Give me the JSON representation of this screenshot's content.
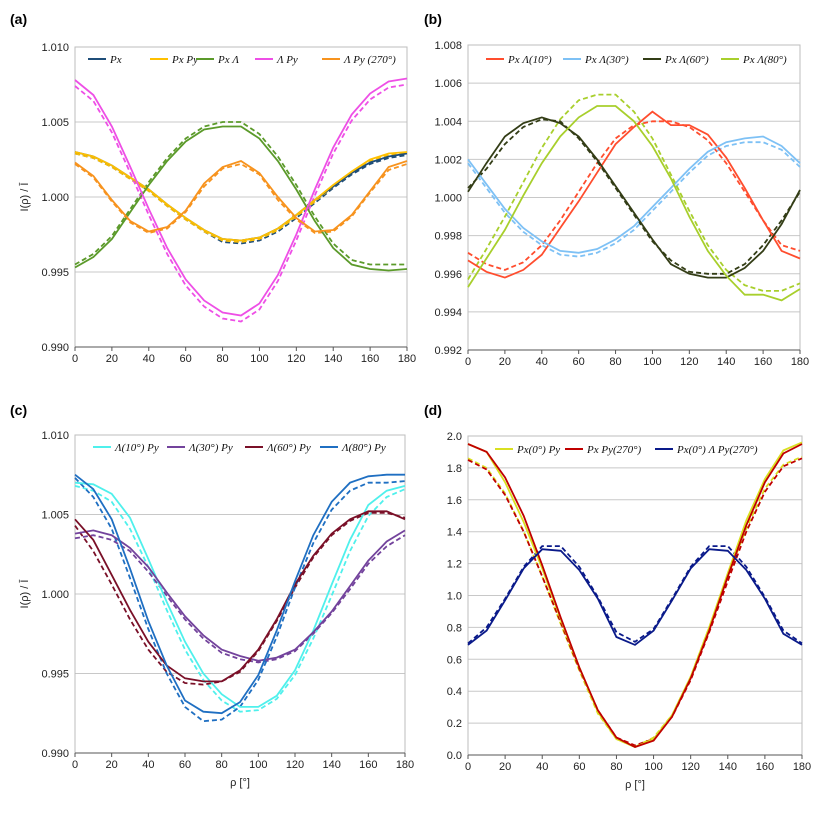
{
  "chart_data": [
    {
      "panel": "(a)",
      "type": "line",
      "x": [
        0,
        10,
        20,
        30,
        40,
        50,
        60,
        70,
        80,
        90,
        100,
        110,
        120,
        130,
        140,
        150,
        160,
        170,
        180
      ],
      "ylabel": "I(ρ) / Ī",
      "xlabel": "",
      "xlim": [
        0,
        180
      ],
      "ylim": [
        0.99,
        1.01
      ],
      "xticks": [
        "0",
        "20",
        "40",
        "60",
        "80",
        "100",
        "120",
        "140",
        "160",
        "180"
      ],
      "yticks": [
        "0.990",
        "0.995",
        "1.000",
        "1.005",
        "1.010"
      ],
      "grid": true,
      "legend_position": "top",
      "series": [
        {
          "name": "Px",
          "color": "#1f4e79",
          "solid": [
            1.003,
            1.0027,
            1.0021,
            1.0013,
            1.0005,
            0.9995,
            0.9986,
            0.9978,
            0.9972,
            0.9971,
            0.9973,
            0.9979,
            0.9988,
            0.9998,
            1.0007,
            1.0016,
            1.0023,
            1.0027,
            1.0029
          ],
          "dashed": [
            1.0029,
            1.0026,
            1.002,
            1.0012,
            1.0004,
            0.9994,
            0.9985,
            0.9977,
            0.997,
            0.9969,
            0.9971,
            0.9977,
            0.9986,
            0.9996,
            1.0006,
            1.0015,
            1.0022,
            1.0026,
            1.0028
          ]
        },
        {
          "name": "Px Py",
          "color": "#ffc000",
          "solid": [
            1.003,
            1.0027,
            1.0021,
            1.0013,
            1.0005,
            0.9995,
            0.9986,
            0.9978,
            0.9972,
            0.9971,
            0.9973,
            0.9979,
            0.9988,
            0.9998,
            1.0008,
            1.0017,
            1.0025,
            1.0029,
            1.003
          ],
          "dashed": [
            1.0029,
            1.0026,
            1.002,
            1.0012,
            1.0004,
            0.9994,
            0.9985,
            0.9977,
            0.9971,
            0.997,
            0.9972,
            0.9978,
            0.9987,
            0.9997,
            1.0007,
            1.0016,
            1.0024,
            1.0028,
            1.0029
          ]
        },
        {
          "name": "Px Λ",
          "color": "#5b9a2a",
          "solid": [
            0.9953,
            0.996,
            0.9972,
            0.999,
            1.0008,
            1.0024,
            1.0037,
            1.0045,
            1.0047,
            1.0047,
            1.0039,
            1.0024,
            1.0005,
            0.9984,
            0.9966,
            0.9955,
            0.9952,
            0.9951,
            0.9952
          ],
          "dashed": [
            0.9955,
            0.9962,
            0.9974,
            0.9992,
            1.001,
            1.0026,
            1.0039,
            1.0047,
            1.005,
            1.005,
            1.0042,
            1.0027,
            1.0008,
            0.9987,
            0.9969,
            0.9958,
            0.9955,
            0.9955,
            0.9955
          ]
        },
        {
          "name": "Λ Py",
          "color": "#ee4fe6",
          "solid": [
            1.0078,
            1.0068,
            1.0047,
            1.002,
            0.9992,
            0.9966,
            0.9945,
            0.9931,
            0.9923,
            0.9921,
            0.9929,
            0.9948,
            0.9975,
            1.0005,
            1.0033,
            1.0055,
            1.0069,
            1.0077,
            1.0079
          ],
          "dashed": [
            1.0074,
            1.0064,
            1.0043,
            1.0016,
            0.9988,
            0.9962,
            0.9941,
            0.9927,
            0.9919,
            0.9917,
            0.9925,
            0.9944,
            0.9971,
            1.0001,
            1.0029,
            1.0051,
            1.0065,
            1.0073,
            1.0075
          ]
        },
        {
          "name": "Λ Py (270°)",
          "color": "#f7931e",
          "solid": [
            1.0023,
            1.0014,
            0.9998,
            0.9984,
            0.9977,
            0.998,
            0.9991,
            1.0009,
            1.002,
            1.0024,
            1.0016,
            1.0,
            0.9986,
            0.9977,
            0.9978,
            0.9988,
            1.0004,
            1.002,
            1.0024
          ],
          "dashed": [
            1.0022,
            1.0013,
            0.9997,
            0.9983,
            0.9976,
            0.9979,
            0.999,
            1.0007,
            1.0019,
            1.0022,
            1.0015,
            0.9998,
            0.9985,
            0.9976,
            0.9977,
            0.9987,
            1.0003,
            1.0018,
            1.0022
          ]
        }
      ]
    },
    {
      "panel": "(b)",
      "type": "line",
      "x": [
        0,
        10,
        20,
        30,
        40,
        50,
        60,
        70,
        80,
        90,
        100,
        110,
        120,
        130,
        140,
        150,
        160,
        170,
        180
      ],
      "ylabel": "",
      "xlabel": "",
      "xlim": [
        0,
        180
      ],
      "ylim": [
        0.992,
        1.008
      ],
      "xticks": [
        "0",
        "20",
        "40",
        "60",
        "80",
        "100",
        "120",
        "140",
        "160",
        "180"
      ],
      "yticks": [
        "0.992",
        "0.994",
        "0.996",
        "0.998",
        "1.000",
        "1.002",
        "1.004",
        "1.006",
        "1.008"
      ],
      "grid": true,
      "legend_position": "top",
      "series": [
        {
          "name": "Px Λ(10°)",
          "color": "#ff4d2e",
          "solid": [
            0.9967,
            0.9961,
            0.9958,
            0.9962,
            0.997,
            0.9984,
            0.9998,
            1.0013,
            1.0028,
            1.0037,
            1.0045,
            1.0038,
            1.0038,
            1.0033,
            1.0021,
            1.0005,
            0.9988,
            0.9972,
            0.9968
          ],
          "dashed": [
            0.9971,
            0.9965,
            0.9962,
            0.9966,
            0.9975,
            0.9988,
            1.0003,
            1.0018,
            1.0031,
            1.0038,
            1.004,
            1.004,
            1.0037,
            1.003,
            1.0018,
            1.0003,
            0.9988,
            0.9975,
            0.9972
          ]
        },
        {
          "name": "Px Λ(30°)",
          "color": "#7ec1f5",
          "solid": [
            1.002,
            1.0007,
            0.9994,
            0.9984,
            0.9977,
            0.9972,
            0.9971,
            0.9973,
            0.9978,
            0.9985,
            0.9995,
            1.0005,
            1.0015,
            1.0024,
            1.0029,
            1.0031,
            1.0032,
            1.0027,
            1.0018
          ],
          "dashed": [
            1.0018,
            1.0005,
            0.9992,
            0.9982,
            0.9975,
            0.997,
            0.9969,
            0.9971,
            0.9976,
            0.9983,
            0.9993,
            1.0003,
            1.0013,
            1.0022,
            1.0027,
            1.0029,
            1.0029,
            1.0025,
            1.0016
          ]
        },
        {
          "name": "Px Λ(60°)",
          "color": "#333d16",
          "solid": [
            1.0003,
            1.0018,
            1.0032,
            1.0039,
            1.0042,
            1.0039,
            1.0032,
            1.002,
            1.0006,
            0.9992,
            0.9978,
            0.9965,
            0.996,
            0.9958,
            0.9958,
            0.9963,
            0.9972,
            0.9986,
            1.0004
          ],
          "dashed": [
            1.0005,
            1.0015,
            1.0028,
            1.0037,
            1.0041,
            1.004,
            1.0031,
            1.0019,
            1.0005,
            0.9991,
            0.9977,
            0.9967,
            0.9961,
            0.996,
            0.996,
            0.9965,
            0.9975,
            0.9988,
            1.0003
          ]
        },
        {
          "name": "Px Λ(80°)",
          "color": "#a8cf2c",
          "solid": [
            0.9953,
            0.9968,
            0.9983,
            1.0001,
            1.0018,
            1.0032,
            1.0042,
            1.0048,
            1.0048,
            1.004,
            1.0027,
            1.001,
            0.999,
            0.9972,
            0.9959,
            0.9949,
            0.9949,
            0.9946,
            0.9952
          ],
          "dashed": [
            0.9957,
            0.9973,
            0.999,
            1.0008,
            1.0026,
            1.0041,
            1.0051,
            1.0054,
            1.0054,
            1.0045,
            1.0031,
            1.0012,
            0.9993,
            0.9975,
            0.9962,
            0.9954,
            0.9951,
            0.9951,
            0.9955
          ]
        }
      ]
    },
    {
      "panel": "(c)",
      "type": "line",
      "x": [
        0,
        10,
        20,
        30,
        40,
        50,
        60,
        70,
        80,
        90,
        100,
        110,
        120,
        130,
        140,
        150,
        160,
        170,
        180
      ],
      "ylabel": "I(ρ) / Ī",
      "xlabel": "ρ [°]",
      "xlim": [
        0,
        180
      ],
      "ylim": [
        0.99,
        1.01
      ],
      "xticks": [
        "0",
        "20",
        "40",
        "60",
        "80",
        "100",
        "120",
        "140",
        "160",
        "180"
      ],
      "yticks": [
        "0.990",
        "0.995",
        "1.000",
        "1.005",
        "1.010"
      ],
      "grid": true,
      "legend_position": "top",
      "series": [
        {
          "name": "Λ(10°) Py",
          "color": "#4ff0ec",
          "solid": [
            1.007,
            1.0069,
            1.0063,
            1.0048,
            1.0022,
            0.9995,
            0.997,
            0.995,
            0.9937,
            0.9929,
            0.9929,
            0.9936,
            0.9952,
            0.9977,
            1.0006,
            1.0034,
            1.0056,
            1.0065,
            1.0068
          ],
          "dashed": [
            1.0068,
            1.0065,
            1.0058,
            1.0041,
            1.0017,
            0.999,
            0.9965,
            0.9946,
            0.9933,
            0.9926,
            0.9927,
            0.9934,
            0.9949,
            0.9972,
            0.9999,
            1.0027,
            1.0049,
            1.0061,
            1.0066
          ]
        },
        {
          "name": "Λ(30°) Py",
          "color": "#73439c",
          "solid": [
            1.0038,
            1.004,
            1.0037,
            1.0029,
            1.0017,
            1.0001,
            0.9986,
            0.9974,
            0.9965,
            0.9961,
            0.9958,
            0.996,
            0.9965,
            0.9976,
            0.9989,
            1.0005,
            1.0021,
            1.0033,
            1.004
          ],
          "dashed": [
            1.0035,
            1.0037,
            1.0034,
            1.0027,
            1.0014,
            0.9999,
            0.9984,
            0.9972,
            0.9963,
            0.9959,
            0.9957,
            0.9959,
            0.9964,
            0.9975,
            0.9988,
            1.0003,
            1.0019,
            1.003,
            1.0037
          ]
        },
        {
          "name": "Λ(60°) Py",
          "color": "#7a1028",
          "solid": [
            1.0047,
            1.0034,
            1.0012,
            0.999,
            0.997,
            0.9955,
            0.9947,
            0.9945,
            0.9945,
            0.9952,
            0.9965,
            0.9984,
            1.0006,
            1.0024,
            1.0038,
            1.0047,
            1.0052,
            1.0052,
            1.0047
          ],
          "dashed": [
            1.0043,
            1.0027,
            1.0006,
            0.9984,
            0.9965,
            0.9951,
            0.9944,
            0.9943,
            0.9945,
            0.9951,
            0.9964,
            0.9983,
            1.0004,
            1.0023,
            1.0037,
            1.0046,
            1.0051,
            1.0051,
            1.0048
          ]
        },
        {
          "name": "Λ(80°) Py",
          "color": "#1f6fc2",
          "solid": [
            1.0075,
            1.0066,
            1.0047,
            1.0016,
            0.9983,
            0.9955,
            0.9933,
            0.9926,
            0.9925,
            0.9932,
            0.9949,
            0.9977,
            1.0008,
            1.0037,
            1.0058,
            1.007,
            1.0074,
            1.0075,
            1.0075
          ],
          "dashed": [
            1.0073,
            1.0061,
            1.0041,
            1.001,
            0.9978,
            0.995,
            0.9929,
            0.992,
            0.9921,
            0.9929,
            0.9946,
            0.9973,
            1.0004,
            1.0032,
            1.0053,
            1.0065,
            1.007,
            1.007,
            1.0071
          ]
        }
      ]
    },
    {
      "panel": "(d)",
      "type": "line",
      "x": [
        0,
        10,
        20,
        30,
        40,
        50,
        60,
        70,
        80,
        90,
        100,
        110,
        120,
        130,
        140,
        150,
        160,
        170,
        180
      ],
      "ylabel": "",
      "xlabel": "ρ [°]",
      "xlim": [
        0,
        180
      ],
      "ylim": [
        0.0,
        2.0
      ],
      "xticks": [
        "0",
        "20",
        "40",
        "60",
        "80",
        "100",
        "120",
        "140",
        "160",
        "180"
      ],
      "yticks": [
        "0.0",
        "0.2",
        "0.4",
        "0.6",
        "0.8",
        "1.0",
        "1.2",
        "1.4",
        "1.6",
        "1.8",
        "2.0"
      ],
      "grid": true,
      "legend_position": "top",
      "series": [
        {
          "name": "Px(0°) Py",
          "color": "#d9e021",
          "solid": [
            1.95,
            1.9,
            1.71,
            1.46,
            1.17,
            0.85,
            0.55,
            0.27,
            0.1,
            0.05,
            0.1,
            0.25,
            0.49,
            0.8,
            1.14,
            1.47,
            1.73,
            1.91,
            1.96
          ],
          "dashed": [
            1.86,
            1.8,
            1.64,
            1.4,
            1.12,
            0.82,
            0.53,
            0.26,
            0.1,
            0.05,
            0.11,
            0.25,
            0.49,
            0.8,
            1.12,
            1.42,
            1.67,
            1.82,
            1.87
          ]
        },
        {
          "name": "Px Py(270°)",
          "color": "#c00000",
          "solid": [
            1.95,
            1.9,
            1.74,
            1.5,
            1.19,
            0.86,
            0.55,
            0.28,
            0.11,
            0.05,
            0.09,
            0.24,
            0.48,
            0.78,
            1.12,
            1.44,
            1.71,
            1.89,
            1.95
          ],
          "dashed": [
            1.85,
            1.79,
            1.63,
            1.4,
            1.12,
            0.83,
            0.54,
            0.28,
            0.11,
            0.06,
            0.1,
            0.24,
            0.47,
            0.77,
            1.09,
            1.4,
            1.65,
            1.81,
            1.86
          ]
        },
        {
          "name": "Px(0°) Λ Py(270°)",
          "color": "#0a1a8a",
          "solid": [
            0.69,
            0.78,
            0.97,
            1.17,
            1.29,
            1.28,
            1.16,
            0.98,
            0.74,
            0.69,
            0.78,
            0.97,
            1.17,
            1.29,
            1.28,
            1.16,
            0.98,
            0.76,
            0.69
          ],
          "dashed": [
            0.7,
            0.8,
            0.98,
            1.18,
            1.31,
            1.31,
            1.18,
            0.99,
            0.77,
            0.71,
            0.79,
            0.98,
            1.18,
            1.31,
            1.31,
            1.18,
            0.99,
            0.78,
            0.7
          ]
        }
      ]
    }
  ]
}
